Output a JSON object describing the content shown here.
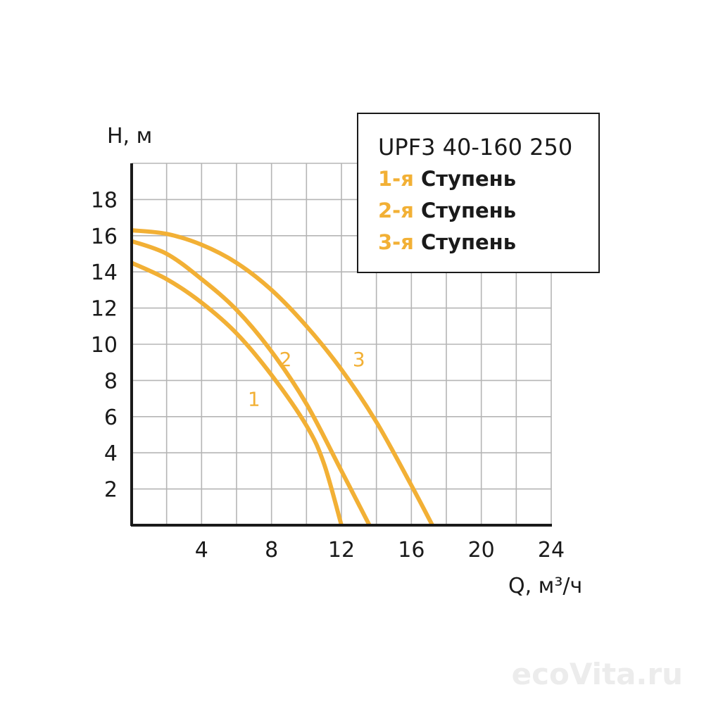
{
  "chart_data": {
    "type": "line",
    "xlabel": "Q, м³/ч",
    "ylabel": "H, м",
    "xlim": [
      0,
      24
    ],
    "ylim": [
      0,
      20
    ],
    "x_ticks": [
      4,
      8,
      12,
      16,
      20,
      24
    ],
    "y_ticks": [
      2,
      4,
      6,
      8,
      10,
      12,
      14,
      16,
      18
    ],
    "grid": true,
    "series": [
      {
        "name": "1",
        "color": "#f2b035",
        "points": [
          [
            0,
            14.5
          ],
          [
            2,
            13.6
          ],
          [
            4,
            12.3
          ],
          [
            6,
            10.6
          ],
          [
            8,
            8.3
          ],
          [
            10,
            5.5
          ],
          [
            11,
            3.4
          ],
          [
            12,
            0
          ]
        ]
      },
      {
        "name": "2",
        "color": "#f2b035",
        "points": [
          [
            0,
            15.7
          ],
          [
            2,
            15.0
          ],
          [
            4,
            13.6
          ],
          [
            6,
            11.9
          ],
          [
            8,
            9.6
          ],
          [
            10,
            6.7
          ],
          [
            12,
            3.0
          ],
          [
            13.6,
            0
          ]
        ]
      },
      {
        "name": "3",
        "color": "#f2b035",
        "points": [
          [
            0,
            16.3
          ],
          [
            2,
            16.1
          ],
          [
            4,
            15.5
          ],
          [
            6,
            14.5
          ],
          [
            8,
            13.0
          ],
          [
            10,
            11.0
          ],
          [
            12,
            8.6
          ],
          [
            14,
            5.7
          ],
          [
            16,
            2.2
          ],
          [
            17.2,
            0
          ]
        ]
      }
    ],
    "curve_labels": [
      {
        "text": "1",
        "x": 7.0,
        "y": 6.6
      },
      {
        "text": "2",
        "x": 8.8,
        "y": 8.8
      },
      {
        "text": "3",
        "x": 13.0,
        "y": 8.8
      }
    ]
  },
  "legend": {
    "title": "UPF3 40-160 250",
    "items": [
      {
        "num": "1-я",
        "word": "Ступень"
      },
      {
        "num": "2-я",
        "word": "Ступень"
      },
      {
        "num": "3-я",
        "word": "Ступень"
      }
    ]
  },
  "watermark": "ecoVita.ru"
}
